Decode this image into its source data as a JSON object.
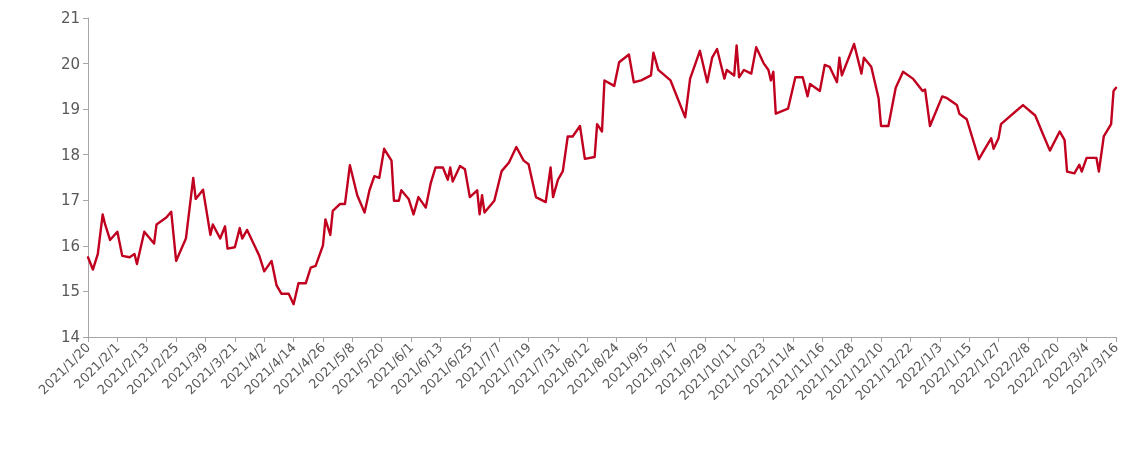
{
  "chart_data": {
    "type": "line",
    "x": [
      "2021-01-20",
      "2021-01-22",
      "2021-01-24",
      "2021-01-26",
      "2021-01-27",
      "2021-01-29",
      "2021-02-01",
      "2021-02-03",
      "2021-02-06",
      "2021-02-08",
      "2021-02-09",
      "2021-02-12",
      "2021-02-16",
      "2021-02-17",
      "2021-02-21",
      "2021-02-23",
      "2021-02-25",
      "2021-03-01",
      "2021-03-04",
      "2021-03-05",
      "2021-03-08",
      "2021-03-11",
      "2021-03-12",
      "2021-03-15",
      "2021-03-17",
      "2021-03-18",
      "2021-03-21",
      "2021-03-23",
      "2021-03-24",
      "2021-03-26",
      "2021-03-31",
      "2021-04-02",
      "2021-04-05",
      "2021-04-07",
      "2021-04-09",
      "2021-04-12",
      "2021-04-14",
      "2021-04-16",
      "2021-04-19",
      "2021-04-21",
      "2021-04-23",
      "2021-04-26",
      "2021-04-27",
      "2021-04-29",
      "2021-04-30",
      "2021-05-03",
      "2021-05-05",
      "2021-05-07",
      "2021-05-10",
      "2021-05-13",
      "2021-05-15",
      "2021-05-17",
      "2021-05-19",
      "2021-05-21",
      "2021-05-24",
      "2021-05-25",
      "2021-05-27",
      "2021-05-28",
      "2021-05-31",
      "2021-06-02",
      "2021-06-04",
      "2021-06-07",
      "2021-06-09",
      "2021-06-11",
      "2021-06-14",
      "2021-06-16",
      "2021-06-17",
      "2021-06-18",
      "2021-06-21",
      "2021-06-23",
      "2021-06-25",
      "2021-06-28",
      "2021-06-29",
      "2021-06-30",
      "2021-07-01",
      "2021-07-05",
      "2021-07-08",
      "2021-07-11",
      "2021-07-14",
      "2021-07-17",
      "2021-07-19",
      "2021-07-22",
      "2021-07-26",
      "2021-07-28",
      "2021-07-29",
      "2021-07-31",
      "2021-08-02",
      "2021-08-04",
      "2021-08-06",
      "2021-08-09",
      "2021-08-11",
      "2021-08-15",
      "2021-08-16",
      "2021-08-18",
      "2021-08-19",
      "2021-08-23",
      "2021-08-25",
      "2021-08-29",
      "2021-08-31",
      "2021-09-03",
      "2021-09-07",
      "2021-09-08",
      "2021-09-10",
      "2021-09-15",
      "2021-09-21",
      "2021-09-23",
      "2021-09-27",
      "2021-09-30",
      "2021-10-02",
      "2021-10-04",
      "2021-10-07",
      "2021-10-08",
      "2021-10-11",
      "2021-10-12",
      "2021-10-13",
      "2021-10-15",
      "2021-10-18",
      "2021-10-20",
      "2021-10-23",
      "2021-10-25",
      "2021-10-26",
      "2021-10-27",
      "2021-10-28",
      "2021-11-02",
      "2021-11-05",
      "2021-11-08",
      "2021-11-10",
      "2021-11-11",
      "2021-11-15",
      "2021-11-17",
      "2021-11-19",
      "2021-11-22",
      "2021-11-23",
      "2021-11-24",
      "2021-11-29",
      "2021-12-02",
      "2021-12-03",
      "2021-12-06",
      "2021-12-09",
      "2021-12-10",
      "2021-12-13",
      "2021-12-16",
      "2021-12-19",
      "2021-12-23",
      "2021-12-27",
      "2021-12-28",
      "2021-12-30",
      "2022-01-04",
      "2022-01-06",
      "2022-01-10",
      "2022-01-11",
      "2022-01-14",
      "2022-01-19",
      "2022-01-21",
      "2022-01-24",
      "2022-01-25",
      "2022-01-27",
      "2022-01-28",
      "2022-02-06",
      "2022-02-11",
      "2022-02-14",
      "2022-02-17",
      "2022-02-21",
      "2022-02-23",
      "2022-02-24",
      "2022-02-27",
      "2022-03-01",
      "2022-03-02",
      "2022-03-04",
      "2022-03-08",
      "2022-03-09",
      "2022-03-11",
      "2022-03-14",
      "2022-03-15",
      "2022-03-16"
    ],
    "values": [
      15.75,
      15.48,
      15.82,
      16.69,
      16.47,
      16.13,
      16.31,
      15.78,
      15.75,
      15.82,
      15.6,
      16.31,
      16.05,
      16.47,
      16.62,
      16.75,
      15.67,
      16.16,
      17.49,
      17.03,
      17.23,
      16.24,
      16.47,
      16.16,
      16.43,
      15.94,
      15.97,
      16.39,
      16.16,
      16.35,
      15.78,
      15.44,
      15.67,
      15.14,
      14.95,
      14.95,
      14.72,
      15.18,
      15.18,
      15.52,
      15.56,
      16.01,
      16.58,
      16.24,
      16.77,
      16.92,
      16.92,
      17.77,
      17.11,
      16.73,
      17.22,
      17.53,
      17.49,
      18.13,
      17.87,
      16.99,
      16.99,
      17.22,
      17.03,
      16.69,
      17.07,
      16.84,
      17.37,
      17.72,
      17.72,
      17.45,
      17.72,
      17.41,
      17.75,
      17.68,
      17.07,
      17.22,
      16.69,
      17.11,
      16.73,
      16.99,
      17.64,
      17.83,
      18.17,
      17.87,
      17.79,
      17.07,
      16.96,
      17.72,
      17.07,
      17.45,
      17.64,
      18.4,
      18.4,
      18.63,
      17.91,
      17.95,
      18.67,
      18.51,
      19.63,
      19.51,
      20.03,
      20.2,
      19.59,
      19.63,
      19.74,
      20.24,
      19.86,
      19.63,
      18.82,
      19.67,
      20.28,
      19.59,
      20.13,
      20.32,
      19.67,
      19.86,
      19.74,
      20.4,
      19.7,
      19.86,
      19.78,
      20.36,
      20.01,
      19.86,
      19.63,
      19.82,
      18.9,
      19.01,
      19.7,
      19.7,
      19.28,
      19.55,
      19.4,
      19.97,
      19.93,
      19.59,
      20.13,
      19.74,
      20.43,
      19.78,
      20.13,
      19.93,
      19.24,
      18.63,
      18.63,
      19.47,
      19.82,
      19.67,
      19.4,
      19.43,
      18.63,
      19.28,
      19.24,
      19.09,
      18.9,
      18.78,
      17.9,
      18.09,
      18.36,
      18.13,
      18.36,
      18.67,
      19.09,
      18.86,
      18.47,
      18.09,
      18.51,
      18.32,
      17.63,
      17.59,
      17.78,
      17.63,
      17.93,
      17.93,
      17.63,
      18.4,
      18.67,
      19.4,
      19.47
    ],
    "color": "#c0001e",
    "ylim": [
      14,
      21
    ],
    "yticks": [
      14,
      15,
      16,
      17,
      18,
      19,
      20,
      21
    ],
    "xlim": [
      "2021-01-20",
      "2022-03-16"
    ],
    "xticks": [
      {
        "value": "2021-01-20",
        "label": "2021/1/20"
      },
      {
        "value": "2021-02-01",
        "label": "2021/2/1"
      },
      {
        "value": "2021-02-13",
        "label": "2021/2/13"
      },
      {
        "value": "2021-02-25",
        "label": "2021/2/25"
      },
      {
        "value": "2021-03-09",
        "label": "2021/3/9"
      },
      {
        "value": "2021-03-21",
        "label": "2021/3/21"
      },
      {
        "value": "2021-04-02",
        "label": "2021/4/2"
      },
      {
        "value": "2021-04-14",
        "label": "2021/4/14"
      },
      {
        "value": "2021-04-26",
        "label": "2021/4/26"
      },
      {
        "value": "2021-05-08",
        "label": "2021/5/8"
      },
      {
        "value": "2021-05-20",
        "label": "2021/5/20"
      },
      {
        "value": "2021-06-01",
        "label": "2021/6/1"
      },
      {
        "value": "2021-06-13",
        "label": "2021/6/13"
      },
      {
        "value": "2021-06-25",
        "label": "2021/6/25"
      },
      {
        "value": "2021-07-07",
        "label": "2021/7/7"
      },
      {
        "value": "2021-07-19",
        "label": "2021/7/19"
      },
      {
        "value": "2021-07-31",
        "label": "2021/7/31"
      },
      {
        "value": "2021-08-12",
        "label": "2021/8/12"
      },
      {
        "value": "2021-08-24",
        "label": "2021/8/24"
      },
      {
        "value": "2021-09-05",
        "label": "2021/9/5"
      },
      {
        "value": "2021-09-17",
        "label": "2021/9/17"
      },
      {
        "value": "2021-09-29",
        "label": "2021/9/29"
      },
      {
        "value": "2021-10-11",
        "label": "2021/10/11"
      },
      {
        "value": "2021-10-23",
        "label": "2021/10/23"
      },
      {
        "value": "2021-11-04",
        "label": "2021/11/4"
      },
      {
        "value": "2021-11-16",
        "label": "2021/11/16"
      },
      {
        "value": "2021-11-28",
        "label": "2021/11/28"
      },
      {
        "value": "2021-12-10",
        "label": "2021/12/10"
      },
      {
        "value": "2021-12-22",
        "label": "2021/12/22"
      },
      {
        "value": "2022-01-03",
        "label": "2022/1/3"
      },
      {
        "value": "2022-01-15",
        "label": "2022/1/15"
      },
      {
        "value": "2022-01-27",
        "label": "2022/1/27"
      },
      {
        "value": "2022-02-08",
        "label": "2022/2/8"
      },
      {
        "value": "2022-02-20",
        "label": "2022/2/20"
      },
      {
        "value": "2022-03-04",
        "label": "2022/3/4"
      },
      {
        "value": "2022-03-16",
        "label": "2022/3/16"
      }
    ],
    "marker": "none",
    "line_style": "solid",
    "grid": false
  }
}
